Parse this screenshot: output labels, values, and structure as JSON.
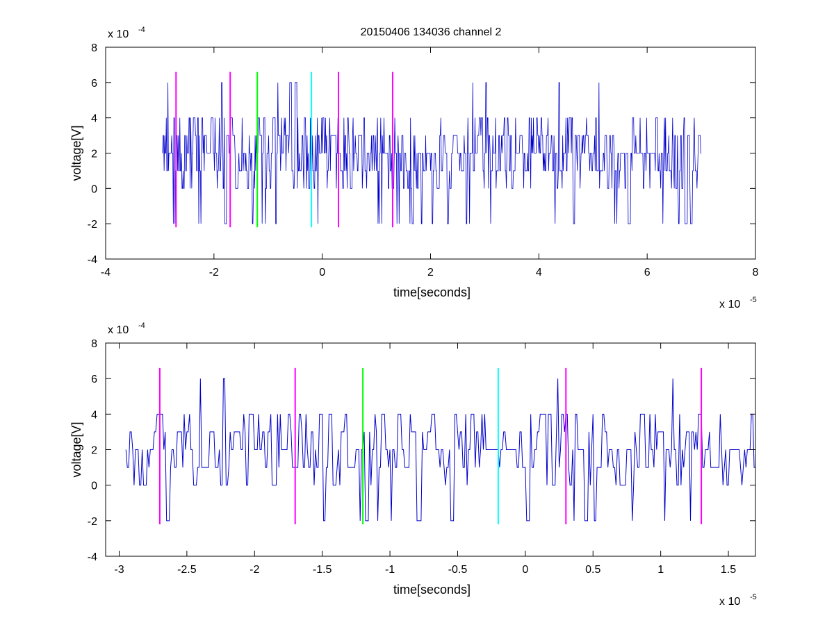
{
  "figure": {
    "title": "20150406 134036 channel 2",
    "background": "#ffffff",
    "signal_color": "#0000cc",
    "marker_colors": {
      "magenta": "#ff00ff",
      "green": "#00ff00",
      "cyan": "#00ffff"
    }
  },
  "chart_data": [
    {
      "type": "line",
      "title": "20150406 134036 channel 2",
      "xlabel": "time[seconds]",
      "ylabel": "voltage[V]",
      "x_exponent_label": "x 10",
      "x_exponent": "-5",
      "y_exponent_label": "x 10",
      "y_exponent": "-4",
      "xlim": [
        -4e-05,
        8e-05
      ],
      "ylim": [
        -0.0004,
        0.0008
      ],
      "xticks": [
        -4e-05,
        -2e-05,
        0,
        2e-05,
        4e-05,
        6e-05,
        8e-05
      ],
      "xtick_labels": [
        "-4",
        "-2",
        "0",
        "2",
        "4",
        "6",
        "8"
      ],
      "yticks": [
        -0.0004,
        -0.0002,
        0,
        0.0002,
        0.0004,
        0.0006,
        0.0008
      ],
      "ytick_labels": [
        "-4",
        "-2",
        "0",
        "2",
        "4",
        "6",
        "8"
      ],
      "grid": false,
      "series": [
        {
          "x_start": -2.95e-05,
          "x_end": 7e-05,
          "sample_step": 1e-07,
          "levels": [
            -0.0002,
            0,
            0.0001,
            0.0002,
            0.0003,
            0.0004,
            0.0006
          ],
          "color": "#0000cc"
        }
      ],
      "markers": [
        {
          "x": -2.7e-05,
          "color": "#ff00ff",
          "y_range": [
            -0.00022,
            0.00066
          ]
        },
        {
          "x": -1.7e-05,
          "color": "#ff00ff",
          "y_range": [
            -0.00022,
            0.00066
          ]
        },
        {
          "x": -1.2e-05,
          "color": "#00ff00",
          "y_range": [
            -0.00022,
            0.00066
          ]
        },
        {
          "x": -2e-06,
          "color": "#00ffff",
          "y_range": [
            -0.00022,
            0.00066
          ]
        },
        {
          "x": 3e-06,
          "color": "#ff00ff",
          "y_range": [
            -0.00022,
            0.00066
          ]
        },
        {
          "x": 1.3e-05,
          "color": "#ff00ff",
          "y_range": [
            -0.00022,
            0.00066
          ]
        }
      ]
    },
    {
      "type": "line",
      "xlabel": "time[seconds]",
      "ylabel": "voltage[V]",
      "x_exponent_label": "x 10",
      "x_exponent": "-5",
      "y_exponent_label": "x 10",
      "y_exponent": "-4",
      "xlim": [
        -3.1e-05,
        1.7e-05
      ],
      "ylim": [
        -0.0004,
        0.0008
      ],
      "xticks": [
        -3e-05,
        -2.5e-05,
        -2e-05,
        -1.5e-05,
        -1e-05,
        -5e-06,
        0,
        5e-06,
        1e-05,
        1.5e-05
      ],
      "xtick_labels": [
        "-3",
        "-2.5",
        "-2",
        "-1.5",
        "-1",
        "-0.5",
        "0",
        "0.5",
        "1",
        "1.5"
      ],
      "yticks": [
        -0.0004,
        -0.0002,
        0,
        0.0002,
        0.0004,
        0.0006,
        0.0008
      ],
      "ytick_labels": [
        "-4",
        "-2",
        "0",
        "2",
        "4",
        "6",
        "8"
      ],
      "grid": false,
      "series": [
        {
          "x_start": -2.95e-05,
          "x_end": 1.7e-05,
          "sample_step": 1e-07,
          "levels": [
            -0.0002,
            0,
            0.0001,
            0.0002,
            0.0003,
            0.0004,
            0.0006
          ],
          "color": "#0000cc"
        }
      ],
      "markers": [
        {
          "x": -2.7e-05,
          "color": "#ff00ff",
          "y_range": [
            -0.00022,
            0.00066
          ]
        },
        {
          "x": -1.7e-05,
          "color": "#ff00ff",
          "y_range": [
            -0.00022,
            0.00066
          ]
        },
        {
          "x": -1.2e-05,
          "color": "#00ff00",
          "y_range": [
            -0.00022,
            0.00066
          ]
        },
        {
          "x": -2e-06,
          "color": "#00ffff",
          "y_range": [
            -0.00022,
            0.00066
          ]
        },
        {
          "x": 3e-06,
          "color": "#ff00ff",
          "y_range": [
            -0.00022,
            0.00066
          ]
        },
        {
          "x": 1.3e-05,
          "color": "#ff00ff",
          "y_range": [
            -0.00022,
            0.00066
          ]
        }
      ]
    }
  ]
}
